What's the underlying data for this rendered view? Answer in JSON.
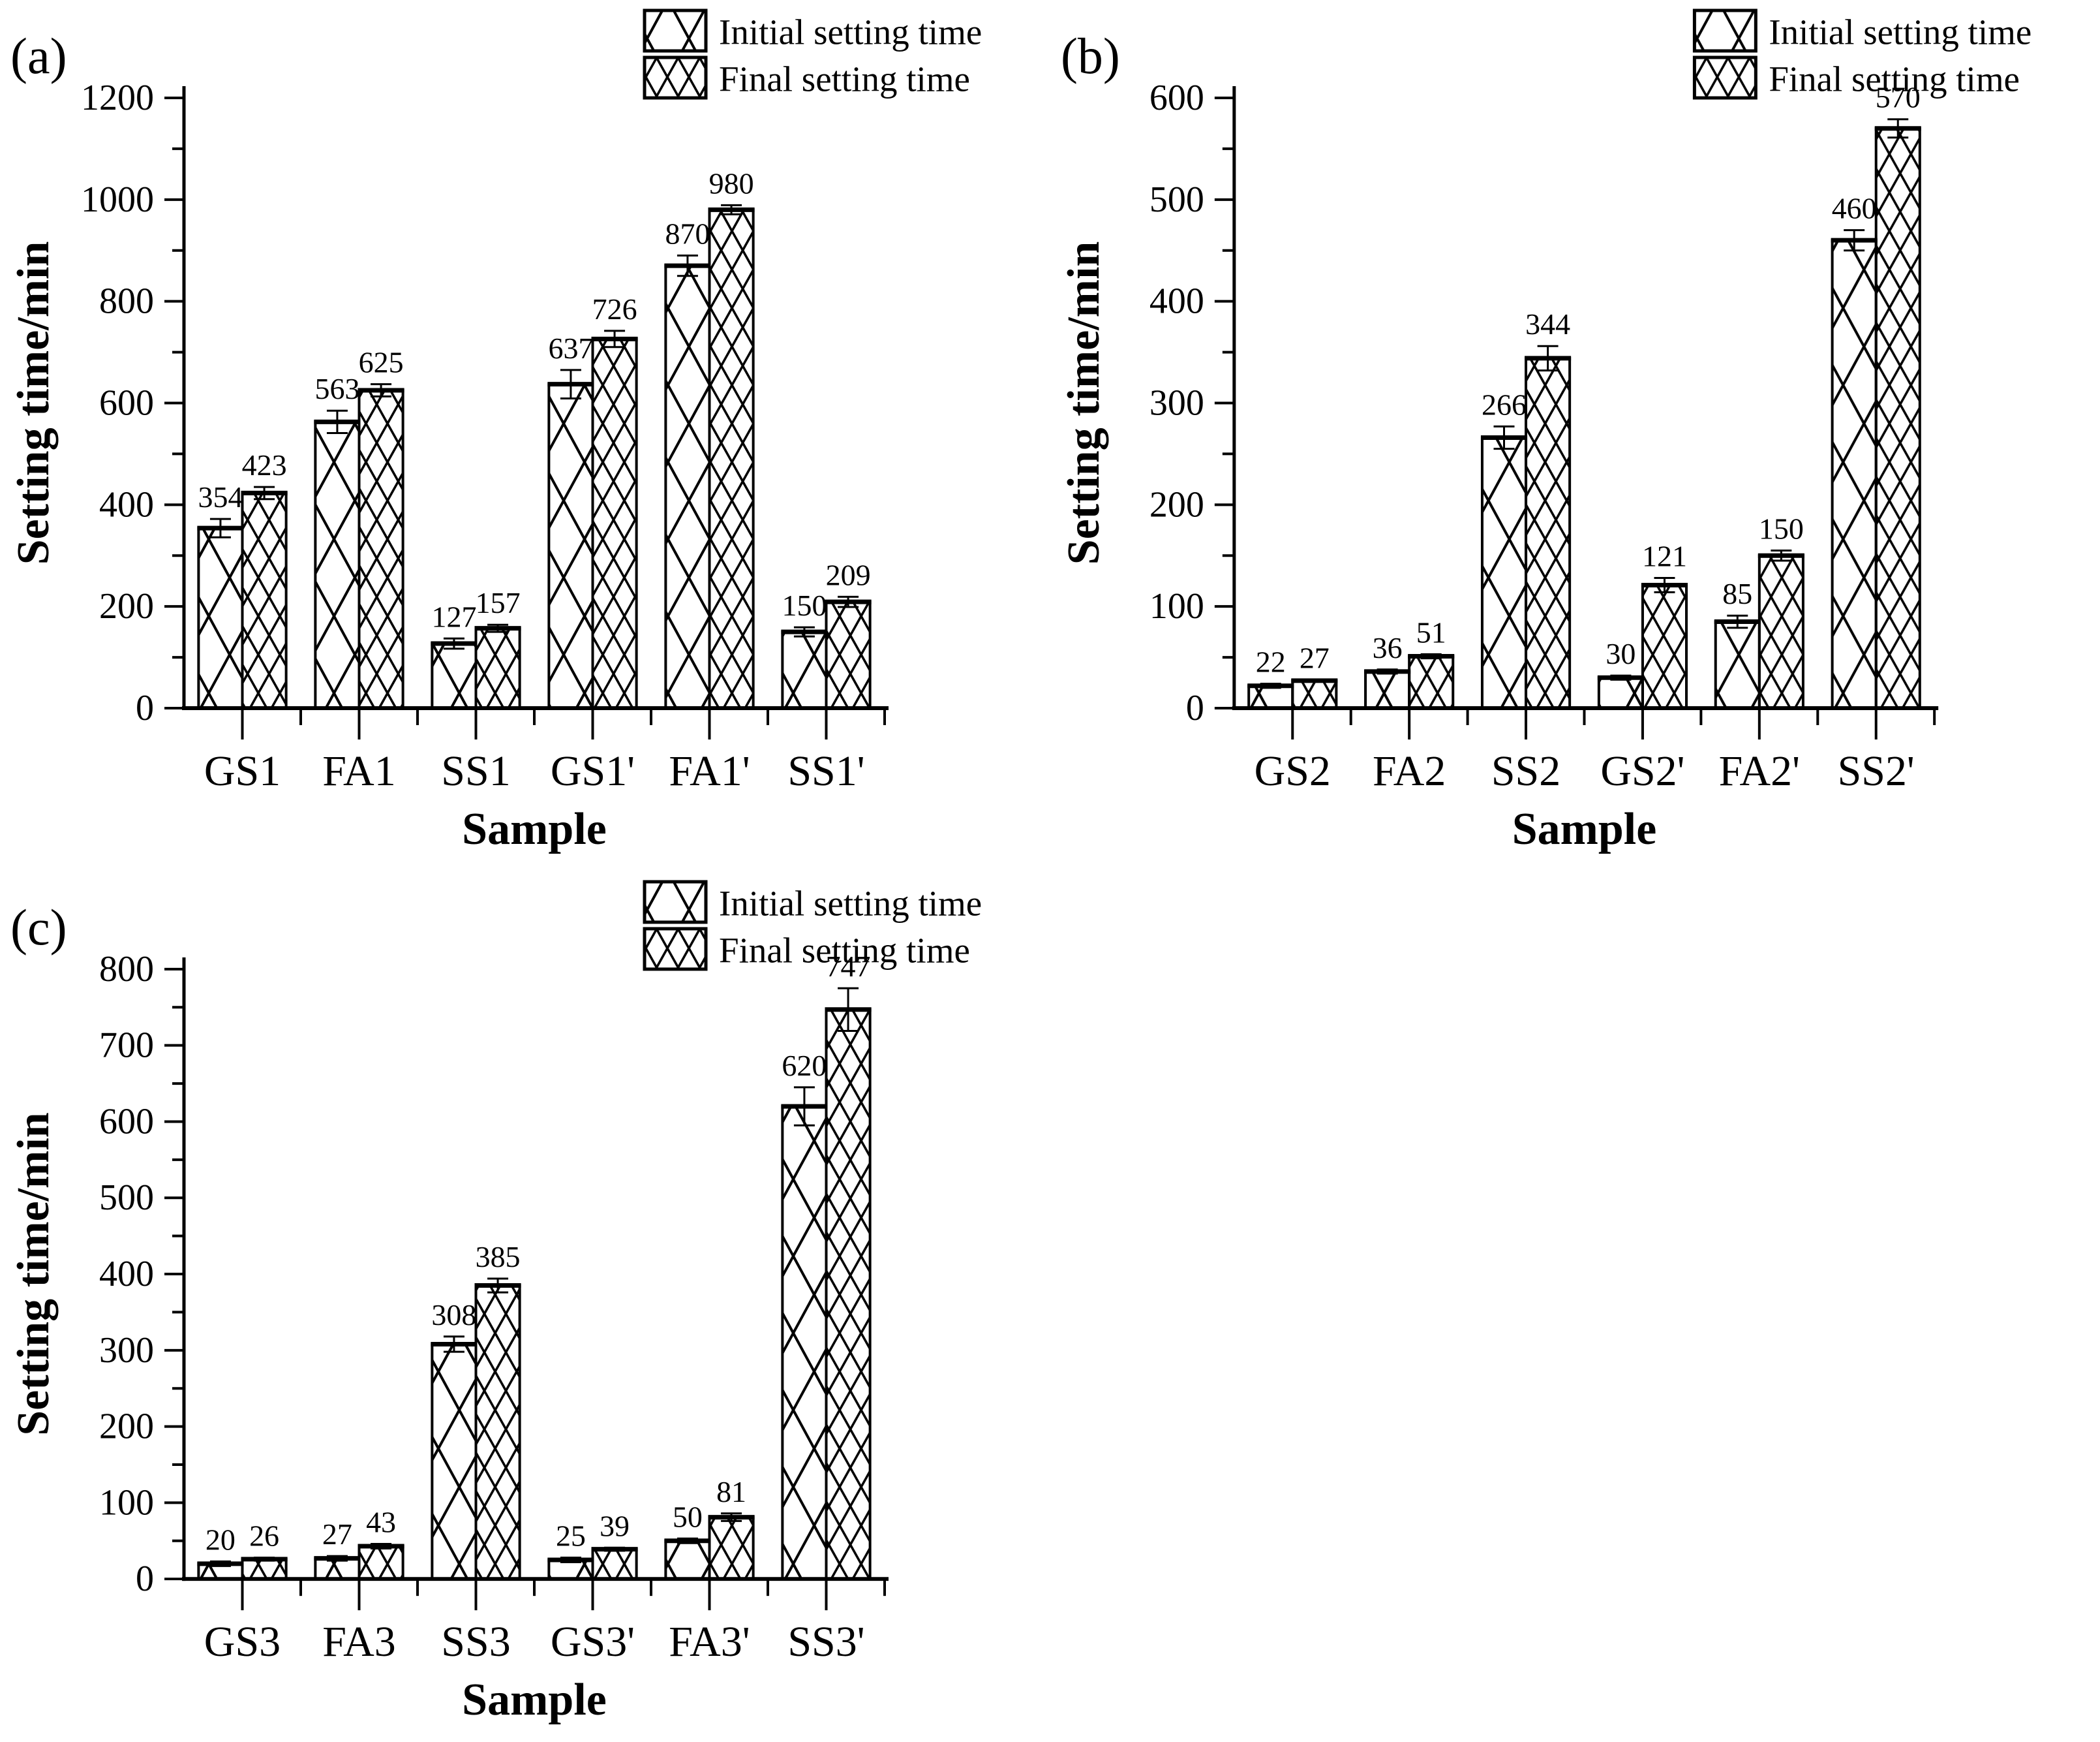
{
  "figure": {
    "background": "#ffffff",
    "ink_color": "#000000",
    "legend": {
      "initial_label": "Initial setting time",
      "final_label": "Final setting time",
      "position": "top-right",
      "initial_pattern": "coarse-diagonal-crosshatch",
      "final_pattern": "fine-diagonal-crosshatch"
    }
  },
  "chart_data": [
    {
      "type": "bar",
      "panel_letter": "(a)",
      "title": "",
      "xlabel": "Sample",
      "ylabel": "Setting time/min",
      "ylim": [
        0,
        1200
      ],
      "ytick_step": 200,
      "yminor_step": 100,
      "grid": false,
      "legend_position": "top-right",
      "categories": [
        "GS1",
        "FA1",
        "SS1",
        "GS1'",
        "FA1'",
        "SS1'"
      ],
      "series": [
        {
          "name": "Initial setting time",
          "values": [
            354,
            563,
            127,
            637,
            870,
            150
          ],
          "errors_est": [
            18,
            22,
            10,
            28,
            20,
            9
          ]
        },
        {
          "name": "Final setting time",
          "values": [
            423,
            625,
            157,
            726,
            980,
            209
          ],
          "errors_est": [
            12,
            12,
            7,
            16,
            9,
            10
          ]
        }
      ]
    },
    {
      "type": "bar",
      "panel_letter": "(b)",
      "title": "",
      "xlabel": "Sample",
      "ylabel": "Setting time/min",
      "ylim": [
        0,
        600
      ],
      "ytick_step": 100,
      "yminor_step": 50,
      "grid": false,
      "legend_position": "top-right",
      "categories": [
        "GS2",
        "FA2",
        "SS2",
        "GS2'",
        "FA2'",
        "SS2'"
      ],
      "series": [
        {
          "name": "Initial setting time",
          "values": [
            22,
            36,
            266,
            30,
            85,
            460
          ],
          "errors_est": [
            2,
            2,
            11,
            2,
            6,
            10
          ]
        },
        {
          "name": "Final setting time",
          "values": [
            27,
            51,
            344,
            121,
            150,
            570
          ],
          "errors_est": [
            1,
            2,
            12,
            7,
            5,
            9
          ]
        }
      ]
    },
    {
      "type": "bar",
      "panel_letter": "(c)",
      "title": "",
      "xlabel": "Sample",
      "ylabel": "Setting time/min",
      "ylim": [
        0,
        800
      ],
      "ytick_step": 100,
      "yminor_step": 50,
      "grid": false,
      "legend_position": "top-right",
      "categories": [
        "GS3",
        "FA3",
        "SS3",
        "GS3'",
        "FA3'",
        "SS3'"
      ],
      "series": [
        {
          "name": "Initial setting time",
          "values": [
            20,
            27,
            308,
            25,
            50,
            620
          ],
          "errors_est": [
            3,
            3,
            10,
            3,
            3,
            25
          ]
        },
        {
          "name": "Final setting time",
          "values": [
            26,
            43,
            385,
            39,
            81,
            747
          ],
          "errors_est": [
            2,
            3,
            9,
            2,
            5,
            28
          ]
        }
      ]
    }
  ]
}
